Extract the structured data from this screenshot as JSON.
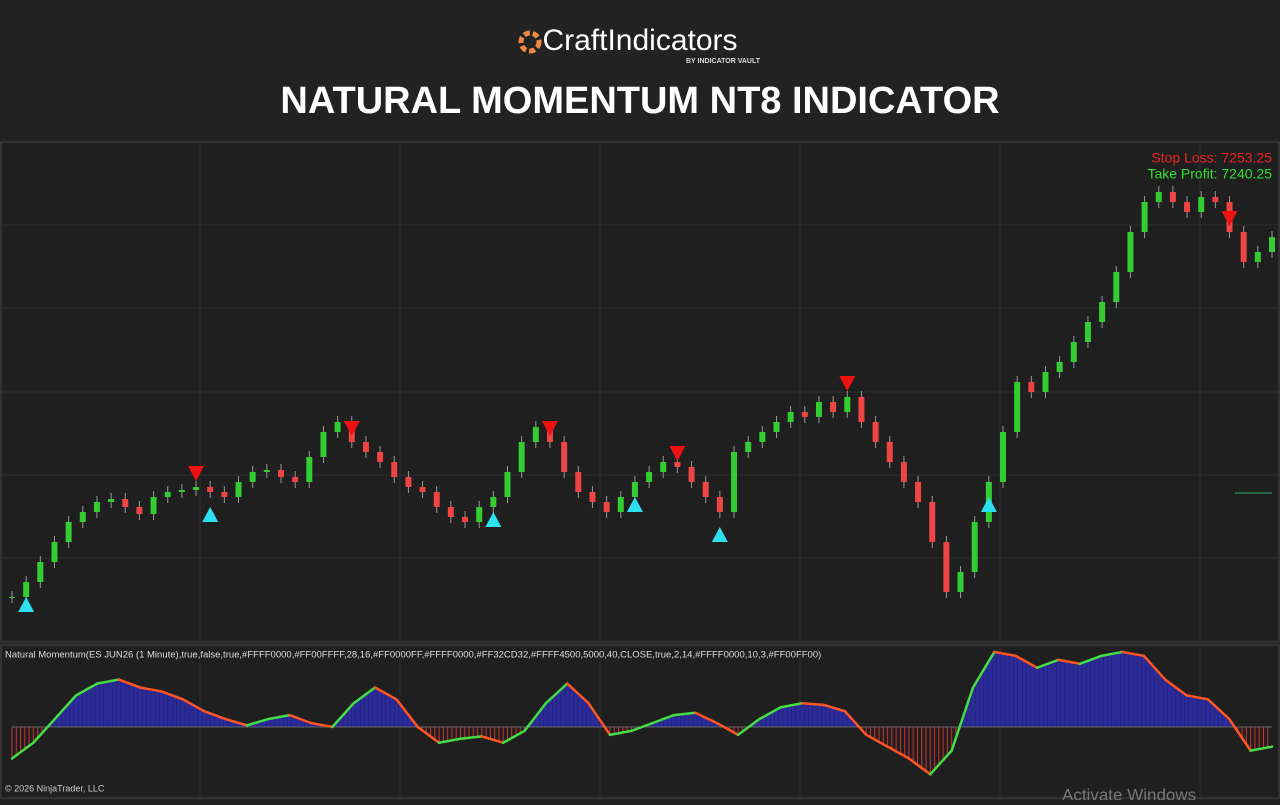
{
  "header": {
    "logo": "CraftIndicators",
    "logo_sub": "BY INDICATOR VAULT",
    "title": "NATURAL MOMENTUM NT8 INDICATOR"
  },
  "chart_data": {
    "type": "candlestick",
    "closes": [
      7240.5,
      7242,
      7244,
      7246,
      7248,
      7249,
      7250,
      7250.3,
      7249.5,
      7248.8,
      7250.5,
      7251,
      7251.2,
      7251.5,
      7251,
      7250.5,
      7252,
      7253,
      7253.2,
      7252.5,
      7252,
      7254.5,
      7257,
      7258,
      7256,
      7255,
      7254,
      7252.5,
      7251.5,
      7251,
      7249.5,
      7248.5,
      7248,
      7249.5,
      7250.5,
      7253,
      7256,
      7257.5,
      7256,
      7253,
      7251,
      7250,
      7249,
      7250.5,
      7252,
      7253,
      7254,
      7253.5,
      7252,
      7250.5,
      7249,
      7255,
      7256,
      7257,
      7258,
      7259,
      7258.5,
      7260,
      7259,
      7260.5,
      7258,
      7256,
      7254,
      7252,
      7250,
      7246,
      7241,
      7243,
      7248,
      7252,
      7257,
      7262,
      7261,
      7263,
      7264,
      7266,
      7268,
      7270,
      7273,
      7277,
      7280,
      7281,
      7280,
      7279,
      7280.5,
      7280,
      7277,
      7274,
      7275,
      7276.5
    ],
    "ylim": [
      7236,
      7286
    ],
    "buy_signals": [
      1,
      14,
      34,
      44,
      50,
      69
    ],
    "sell_signals": [
      13,
      24,
      38,
      47,
      59,
      86
    ],
    "stop_loss": "Stop Loss: 7253.25",
    "take_profit": "Take Profit: 7240.25",
    "indicator_label": "Natural Momentum(ES JUN26 (1 Minute),true,false,true,#FFFF0000,#FF00FFFF,28,16,#FF0000FF,#FFFF0000,#FF32CD32,#FFFF4500,5000,40,CLOSE,true,2,14,#FFFF0000,10,3,#FF00FF00)",
    "oscillator": [
      -0.4,
      -0.2,
      0.1,
      0.4,
      0.55,
      0.6,
      0.5,
      0.45,
      0.35,
      0.2,
      0.1,
      0.02,
      0.1,
      0.15,
      0.05,
      0.0,
      0.3,
      0.5,
      0.35,
      0.0,
      -0.2,
      -0.15,
      -0.12,
      -0.2,
      -0.05,
      0.3,
      0.55,
      0.3,
      -0.1,
      -0.05,
      0.05,
      0.15,
      0.18,
      0.05,
      -0.1,
      0.1,
      0.25,
      0.3,
      0.28,
      0.2,
      -0.1,
      -0.25,
      -0.4,
      -0.6,
      -0.3,
      0.5,
      0.95,
      0.9,
      0.75,
      0.85,
      0.8,
      0.9,
      0.95,
      0.9,
      0.6,
      0.4,
      0.35,
      0.1,
      -0.3,
      -0.25
    ],
    "osc_ylim": [
      -0.9,
      1.0
    ]
  },
  "footer": {
    "copyright": "© 2026 NinjaTrader, LLC",
    "watermark": "Activate Windows"
  }
}
